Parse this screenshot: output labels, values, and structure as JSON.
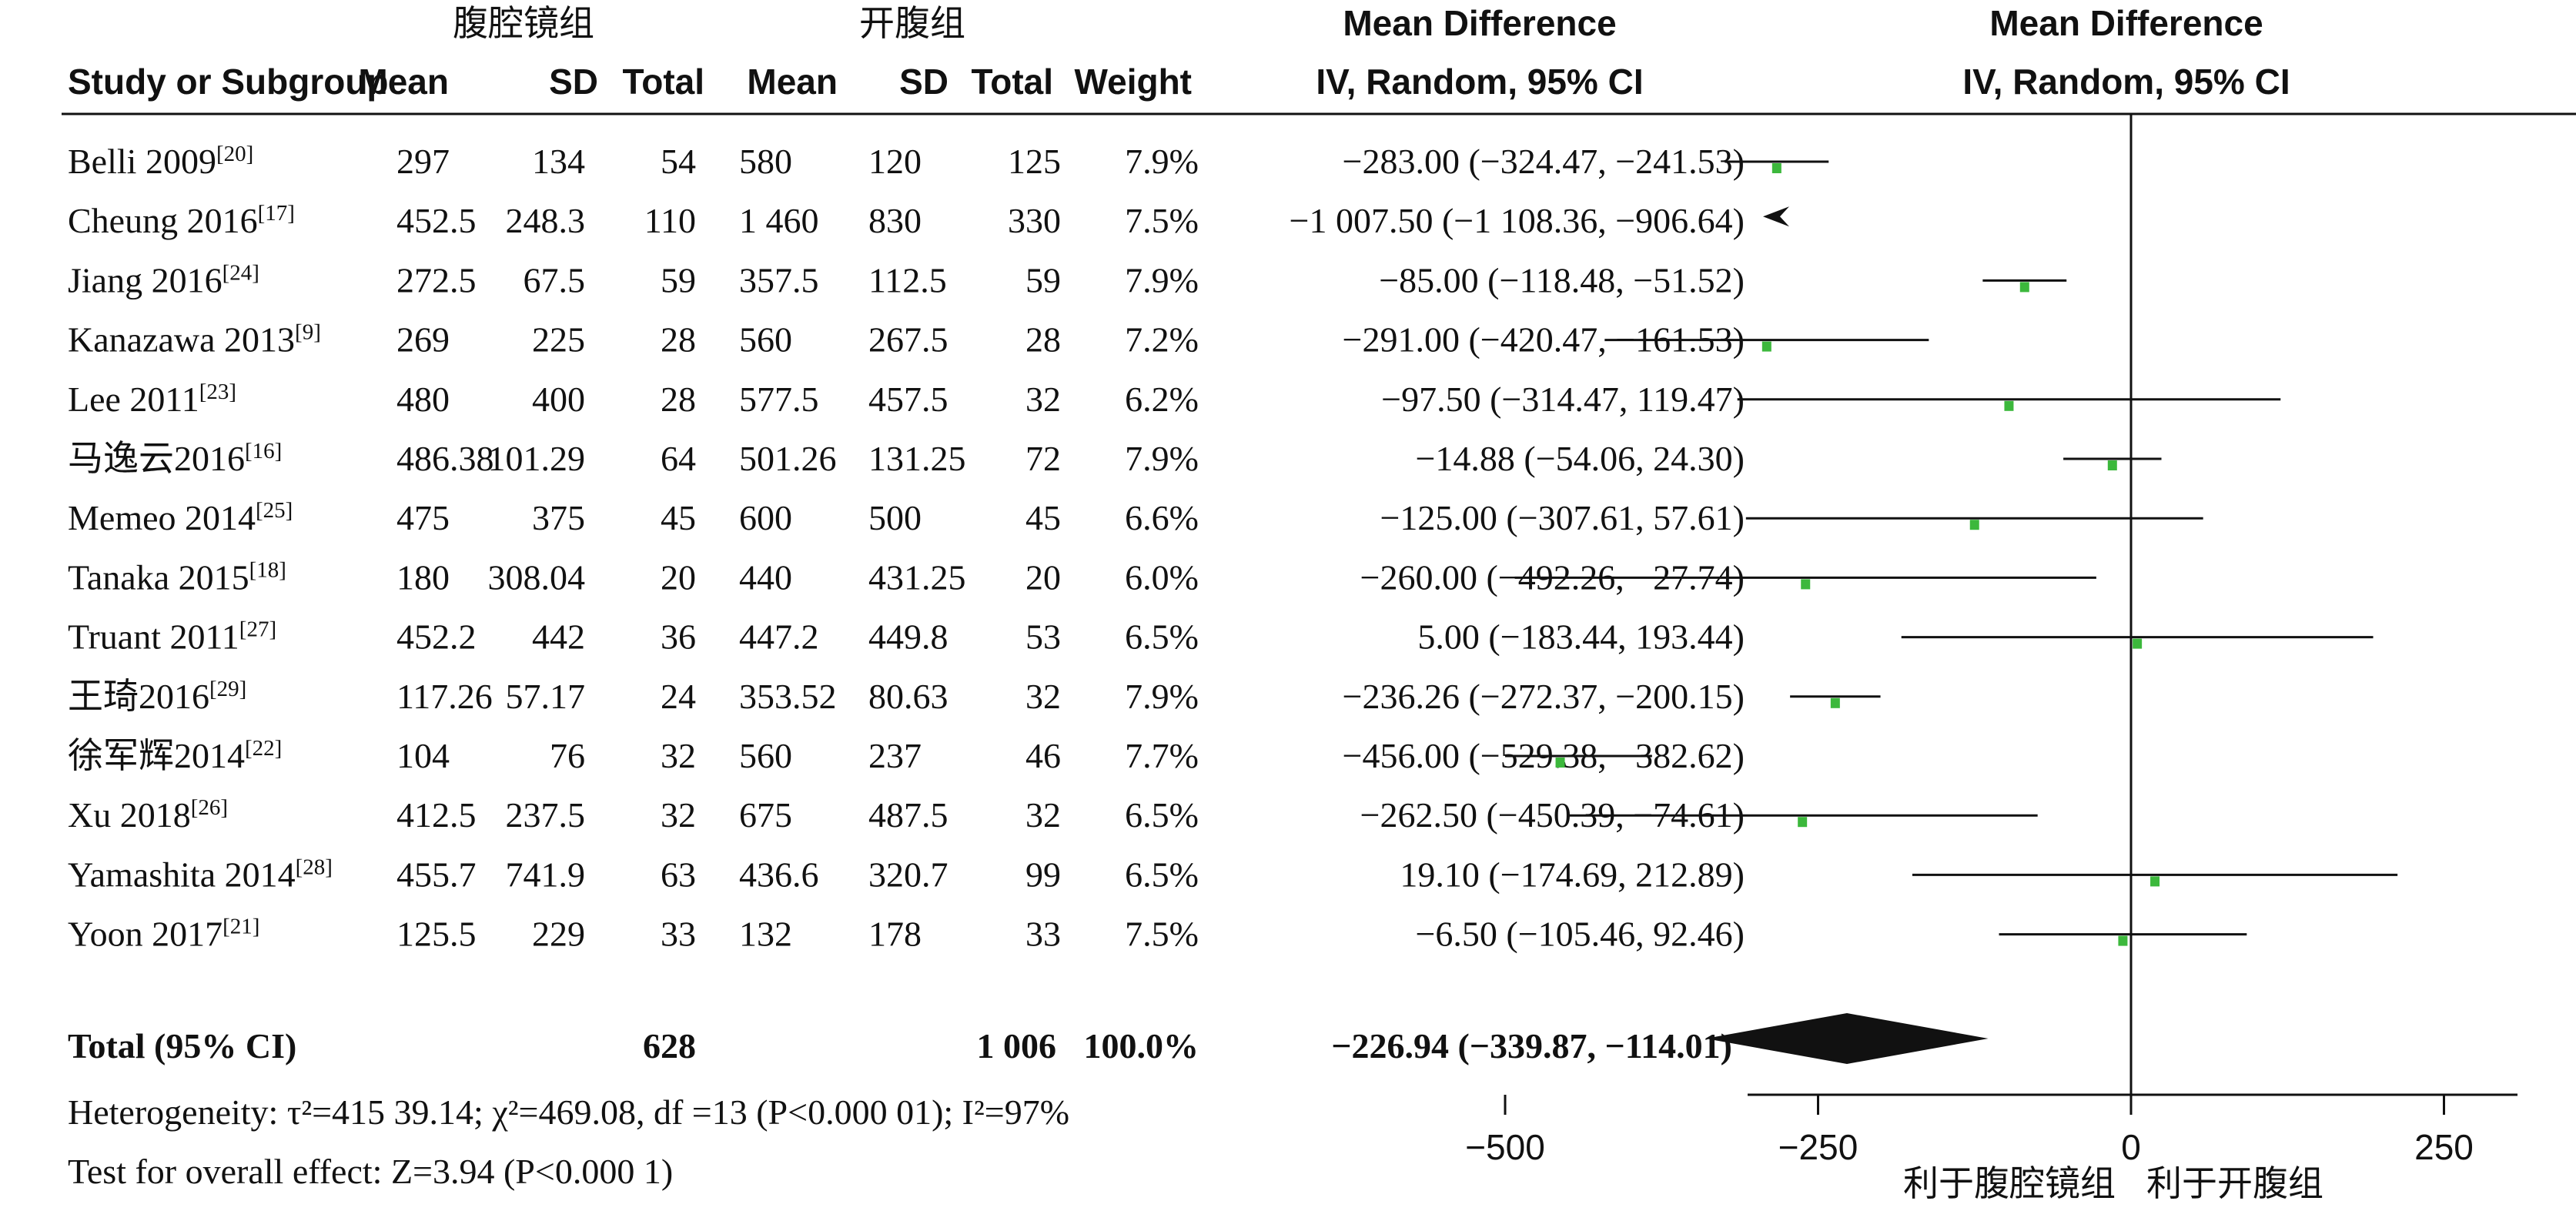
{
  "header": {
    "group1_label": "腹腔镜组",
    "group2_label": "开腹组",
    "md_title": "Mean Difference",
    "md_method": "IV, Random, 95% CI",
    "plot_title": "Mean Difference",
    "plot_method": "IV, Random, 95% CI",
    "columns": [
      "Study or Subgroup",
      "Mean",
      "SD",
      "Total",
      "Mean",
      "SD",
      "Total",
      "Weight"
    ]
  },
  "studies": [
    {
      "name": "Belli 2009",
      "ref": "[20]",
      "m1": "297",
      "sd1": "134",
      "n1": "54",
      "m2": "580",
      "sd2": "120",
      "n2": "125",
      "weight": "7.9%",
      "ci_text": "−283.00 (−324.47, −241.53)"
    },
    {
      "name": "Cheung 2016",
      "ref": "[17]",
      "m1": "452.5",
      "sd1": "248.3",
      "n1": "110",
      "m2": "1 460",
      "sd2": "830",
      "n2": "330",
      "weight": "7.5%",
      "ci_text": "−1 007.50 (−1 108.36, −906.64)"
    },
    {
      "name": "Jiang 2016",
      "ref": "[24]",
      "m1": "272.5",
      "sd1": "67.5",
      "n1": "59",
      "m2": "357.5",
      "sd2": "112.5",
      "n2": "59",
      "weight": "7.9%",
      "ci_text": "−85.00 (−118.48, −51.52)"
    },
    {
      "name": "Kanazawa 2013",
      "ref": "[9]",
      "m1": "269",
      "sd1": "225",
      "n1": "28",
      "m2": "560",
      "sd2": "267.5",
      "n2": "28",
      "weight": "7.2%",
      "ci_text": "−291.00 (−420.47, −161.53)"
    },
    {
      "name": "Lee 2011",
      "ref": "[23]",
      "m1": "480",
      "sd1": "400",
      "n1": "28",
      "m2": "577.5",
      "sd2": "457.5",
      "n2": "32",
      "weight": "6.2%",
      "ci_text": "−97.50 (−314.47, 119.47)"
    },
    {
      "name": "马逸云2016",
      "ref": "[16]",
      "m1": "486.38",
      "sd1": "101.29",
      "n1": "64",
      "m2": "501.26",
      "sd2": "131.25",
      "n2": "72",
      "weight": "7.9%",
      "ci_text": "−14.88 (−54.06, 24.30)"
    },
    {
      "name": "Memeo 2014",
      "ref": "[25]",
      "m1": "475",
      "sd1": "375",
      "n1": "45",
      "m2": "600",
      "sd2": "500",
      "n2": "45",
      "weight": "6.6%",
      "ci_text": "−125.00 (−307.61, 57.61)"
    },
    {
      "name": "Tanaka 2015",
      "ref": "[18]",
      "m1": "180",
      "sd1": "308.04",
      "n1": "20",
      "m2": "440",
      "sd2": "431.25",
      "n2": "20",
      "weight": "6.0%",
      "ci_text": "−260.00 (−492.26, −27.74)"
    },
    {
      "name": "Truant 2011",
      "ref": "[27]",
      "m1": "452.2",
      "sd1": "442",
      "n1": "36",
      "m2": "447.2",
      "sd2": "449.8",
      "n2": "53",
      "weight": "6.5%",
      "ci_text": "5.00 (−183.44, 193.44)"
    },
    {
      "name": "王琦2016",
      "ref": "[29]",
      "m1": "117.26",
      "sd1": "57.17",
      "n1": "24",
      "m2": "353.52",
      "sd2": "80.63",
      "n2": "32",
      "weight": "7.9%",
      "ci_text": "−236.26 (−272.37, −200.15)"
    },
    {
      "name": "徐军辉2014",
      "ref": "[22]",
      "m1": "104",
      "sd1": "76",
      "n1": "32",
      "m2": "560",
      "sd2": "237",
      "n2": "46",
      "weight": "7.7%",
      "ci_text": "−456.00 (−529.38, −382.62)"
    },
    {
      "name": "Xu 2018",
      "ref": "[26]",
      "m1": "412.5",
      "sd1": "237.5",
      "n1": "32",
      "m2": "675",
      "sd2": "487.5",
      "n2": "32",
      "weight": "6.5%",
      "ci_text": "−262.50 (−450.39, −74.61)"
    },
    {
      "name": "Yamashita 2014",
      "ref": "[28]",
      "m1": "455.7",
      "sd1": "741.9",
      "n1": "63",
      "m2": "436.6",
      "sd2": "320.7",
      "n2": "99",
      "weight": "6.5%",
      "ci_text": "19.10 (−174.69, 212.89)"
    },
    {
      "name": "Yoon 2017",
      "ref": "[21]",
      "m1": "125.5",
      "sd1": "229",
      "n1": "33",
      "m2": "132",
      "sd2": "178",
      "n2": "33",
      "weight": "7.5%",
      "ci_text": "−6.50 (−105.46, 92.46)"
    }
  ],
  "total": {
    "label": "Total (95% CI)",
    "n1": "628",
    "n2": "1 006",
    "weight": "100.0%",
    "ci_text": "−226.94 (−339.87, −114.01)"
  },
  "heterogeneity_text": "Heterogeneity: τ²=415 39.14; χ²=469.08, df =13 (P<0.000 01); I²=97%",
  "overall_effect_text": "Test for overall effect: Z=3.94 (P<0.000 1)",
  "chart_data": {
    "type": "forest",
    "xlim": [
      -500,
      500
    ],
    "ticks": [
      -500,
      -250,
      0,
      250,
      500
    ],
    "favours_left": "利于腹腔镜组",
    "favours_right": "利于开腹组",
    "marker_color": "#3cb83c",
    "diamond_color": "#111111",
    "points": [
      {
        "md": -283.0,
        "lo": -324.47,
        "hi": -241.53
      },
      {
        "md": -1007.5,
        "lo": -1108.36,
        "hi": -906.64
      },
      {
        "md": -85.0,
        "lo": -118.48,
        "hi": -51.52
      },
      {
        "md": -291.0,
        "lo": -420.47,
        "hi": -161.53
      },
      {
        "md": -97.5,
        "lo": -314.47,
        "hi": 119.47
      },
      {
        "md": -14.88,
        "lo": -54.06,
        "hi": 24.3
      },
      {
        "md": -125.0,
        "lo": -307.61,
        "hi": 57.61
      },
      {
        "md": -260.0,
        "lo": -492.26,
        "hi": -27.74
      },
      {
        "md": 5.0,
        "lo": -183.44,
        "hi": 193.44
      },
      {
        "md": -236.26,
        "lo": -272.37,
        "hi": -200.15
      },
      {
        "md": -456.0,
        "lo": -529.38,
        "hi": -382.62
      },
      {
        "md": -262.5,
        "lo": -450.39,
        "hi": -74.61
      },
      {
        "md": 19.1,
        "lo": -174.69,
        "hi": 212.89
      },
      {
        "md": -6.5,
        "lo": -105.46,
        "hi": 92.46
      }
    ],
    "overall": {
      "md": -226.94,
      "lo": -339.87,
      "hi": -114.01
    }
  }
}
